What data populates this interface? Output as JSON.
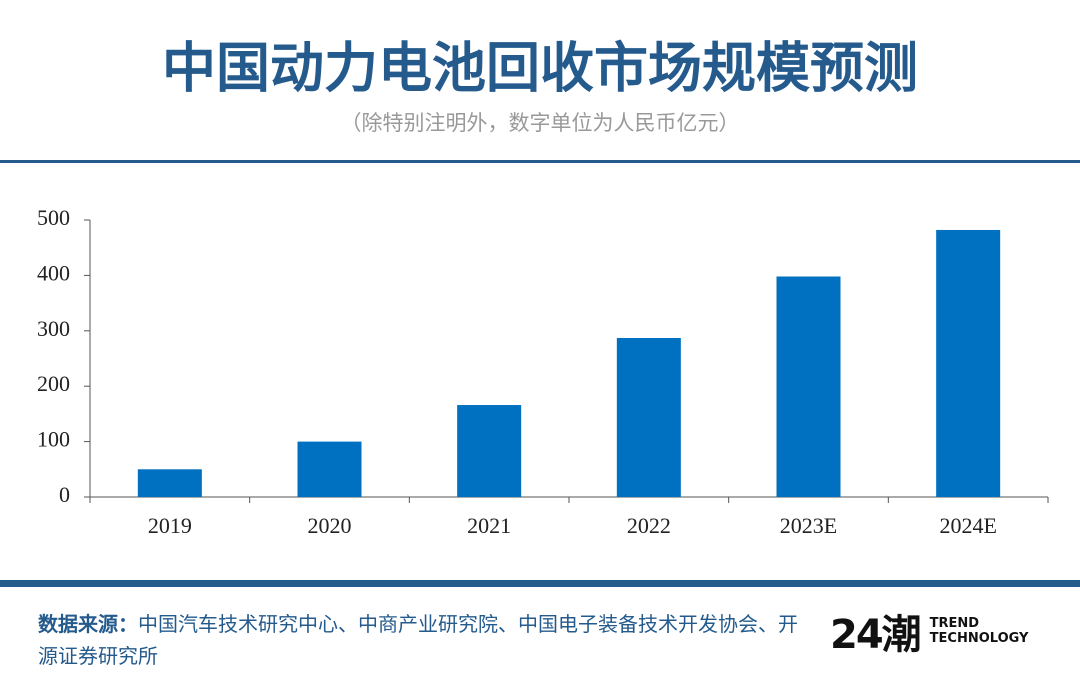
{
  "chart_data": {
    "type": "bar",
    "title": "中国动力电池回收市场规模预测",
    "subtitle": "（除特别注明外，数字单位为人民币亿元）",
    "categories": [
      "2019",
      "2020",
      "2021",
      "2022",
      "2023E",
      "2024E"
    ],
    "values": [
      50,
      100,
      166,
      287,
      398,
      482
    ],
    "color": "#0070c0",
    "ylim": [
      0,
      500
    ],
    "yticks": [
      0,
      100,
      200,
      300,
      400,
      500
    ],
    "grid": false
  },
  "source": {
    "label": "数据来源：",
    "text": "中国汽车技术研究中心、中商产业研究院、中国电子装备技术开发协会、开源证券研究所"
  },
  "logo": {
    "mark": "24潮",
    "line1": "TREND",
    "line2": "TECHNOLOGY"
  }
}
